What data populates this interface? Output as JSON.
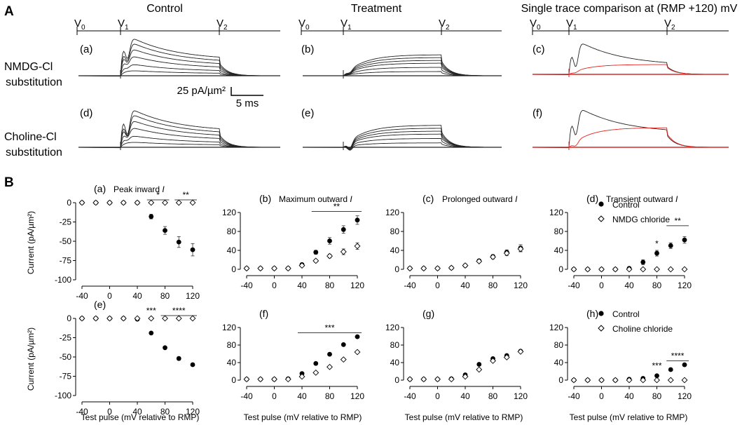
{
  "section_a": {
    "label": "A",
    "col_titles": [
      "Control",
      "Treatment",
      "Single trace comparison at (RMP +120) mV"
    ],
    "voltage_marks": [
      "V0",
      "V1",
      "V2"
    ],
    "row_labels": [
      [
        "NMDG-Cl",
        "substitution"
      ],
      [
        "Choline-Cl",
        "substitution"
      ]
    ],
    "panel_letters": [
      "(a)",
      "(b)",
      "(c)",
      "(d)",
      "(e)",
      "(f)"
    ],
    "scale_bar": {
      "y_label": "25 pA/µm²",
      "x_label": "5 ms"
    },
    "trace_colors": {
      "control": "#222222",
      "treatment": "#e8231e"
    }
  },
  "section_b": {
    "label": "B",
    "y_axis_label": "Current (pA/µm²)",
    "x_axis_label": "Test pulse (mV relative to RMP)",
    "legend_top": [
      "Control",
      "NMDG chloride"
    ],
    "legend_bottom": [
      "Control",
      "Choline chloride"
    ]
  },
  "chart_data": [
    {
      "id": "a",
      "type": "scatter",
      "title": "Peak inward I",
      "letter": "(a)",
      "x": [
        -40,
        -20,
        0,
        20,
        40,
        60,
        80,
        100,
        120
      ],
      "series": [
        {
          "name": "Control",
          "values": [
            0,
            0,
            0,
            0,
            0,
            -18,
            -36,
            -51,
            -61
          ],
          "err": [
            0,
            0,
            0,
            0,
            0,
            3,
            5,
            7,
            8
          ]
        },
        {
          "name": "NMDG chloride",
          "values": [
            0,
            0,
            0,
            0,
            0,
            0,
            0,
            0,
            0
          ],
          "err": [
            0,
            0,
            0,
            0,
            0,
            0,
            0,
            0,
            0
          ]
        }
      ],
      "ylim": [
        -100,
        0
      ],
      "yticks": [
        0,
        -25,
        -50,
        -75,
        -100
      ],
      "xticks": [
        -40,
        0,
        40,
        80,
        120
      ],
      "sig": [
        {
          "x1": 60,
          "x2": 80,
          "label": "*"
        },
        {
          "x1": 100,
          "x2": 120,
          "label": "**"
        }
      ]
    },
    {
      "id": "b",
      "type": "scatter",
      "title": "Maximum outward I",
      "letter": "(b)",
      "x": [
        -40,
        -20,
        0,
        20,
        40,
        60,
        80,
        100,
        120
      ],
      "series": [
        {
          "name": "Control",
          "values": [
            2,
            2,
            2,
            2,
            10,
            36,
            60,
            84,
            104
          ],
          "err": [
            1,
            1,
            1,
            1,
            2,
            4,
            7,
            8,
            9
          ]
        },
        {
          "name": "NMDG chloride",
          "values": [
            2,
            2,
            2,
            2,
            8,
            18,
            28,
            37,
            49
          ],
          "err": [
            1,
            1,
            1,
            1,
            2,
            3,
            4,
            6,
            7
          ]
        }
      ],
      "ylim": [
        0,
        120
      ],
      "yticks": [
        0,
        40,
        80,
        120
      ],
      "xticks": [
        -40,
        0,
        40,
        80,
        120
      ],
      "sig": [
        {
          "x1": 60,
          "x2": 120,
          "label": "**"
        }
      ]
    },
    {
      "id": "c",
      "type": "scatter",
      "title": "Prolonged outward I",
      "letter": "(c)",
      "x": [
        -40,
        -20,
        0,
        20,
        40,
        60,
        80,
        100,
        120
      ],
      "series": [
        {
          "name": "Control",
          "values": [
            2,
            2,
            2,
            3,
            8,
            18,
            27,
            36,
            45
          ],
          "err": [
            1,
            1,
            1,
            1,
            2,
            3,
            4,
            5,
            7
          ]
        },
        {
          "name": "NMDG chloride",
          "values": [
            2,
            2,
            2,
            3,
            8,
            17,
            26,
            34,
            43
          ],
          "err": [
            1,
            1,
            1,
            1,
            2,
            3,
            4,
            5,
            6
          ]
        }
      ],
      "ylim": [
        0,
        120
      ],
      "yticks": [
        0,
        40,
        80,
        120
      ],
      "xticks": [
        -40,
        0,
        40,
        80,
        120
      ],
      "sig": []
    },
    {
      "id": "d",
      "type": "scatter",
      "title": "Transient outward I",
      "letter": "(d)",
      "x": [
        -40,
        -20,
        0,
        20,
        40,
        60,
        80,
        100,
        120
      ],
      "series": [
        {
          "name": "Control",
          "values": [
            0,
            0,
            0,
            0,
            2,
            15,
            34,
            50,
            62
          ],
          "err": [
            0,
            0,
            0,
            0,
            1,
            5,
            6,
            6,
            7
          ]
        },
        {
          "name": "NMDG chloride",
          "values": [
            0,
            0,
            0,
            0,
            0,
            0,
            0,
            0,
            0
          ],
          "err": [
            0,
            0,
            0,
            0,
            0,
            0,
            0,
            0,
            0
          ]
        }
      ],
      "ylim": [
        0,
        120
      ],
      "yticks": [
        0,
        40,
        80,
        120
      ],
      "xticks": [
        -40,
        0,
        40,
        80,
        120
      ],
      "sig": [
        {
          "x1": 80,
          "x2": 80,
          "label": "*"
        },
        {
          "x1": 100,
          "x2": 120,
          "label": "**"
        }
      ]
    },
    {
      "id": "e",
      "type": "scatter",
      "title": "",
      "letter": "(e)",
      "x": [
        -40,
        -20,
        0,
        20,
        40,
        60,
        80,
        100,
        120
      ],
      "series": [
        {
          "name": "Control",
          "values": [
            0,
            0,
            0,
            0,
            -1,
            -19,
            -38,
            -52,
            -60
          ],
          "err": [
            0,
            0,
            0,
            0,
            0,
            1,
            1,
            2,
            1
          ]
        },
        {
          "name": "Choline chloride",
          "values": [
            0,
            0,
            0,
            0,
            0,
            0,
            0,
            0,
            0
          ],
          "err": [
            0,
            0,
            0,
            0,
            0,
            0,
            0,
            0,
            0
          ]
        }
      ],
      "ylim": [
        -100,
        0
      ],
      "yticks": [
        0,
        -25,
        -50,
        -75,
        -100
      ],
      "xticks": [
        -40,
        0,
        40,
        80,
        120
      ],
      "sig": [
        {
          "x1": 60,
          "x2": 60,
          "label": "***"
        },
        {
          "x1": 80,
          "x2": 120,
          "label": "****"
        }
      ]
    },
    {
      "id": "f",
      "type": "scatter",
      "title": "",
      "letter": "(f)",
      "x": [
        -40,
        -20,
        0,
        20,
        40,
        60,
        80,
        100,
        120
      ],
      "series": [
        {
          "name": "Control",
          "values": [
            2,
            2,
            2,
            3,
            15,
            38,
            59,
            81,
            99
          ],
          "err": [
            0,
            0,
            0,
            0,
            1,
            1,
            1,
            2,
            2
          ]
        },
        {
          "name": "Choline chloride",
          "values": [
            2,
            2,
            2,
            2,
            8,
            17,
            30,
            47,
            64
          ],
          "err": [
            0,
            0,
            0,
            0,
            1,
            1,
            1,
            1,
            2
          ]
        }
      ],
      "ylim": [
        0,
        120
      ],
      "yticks": [
        0,
        40,
        80,
        120
      ],
      "xticks": [
        -40,
        0,
        40,
        80,
        120
      ],
      "sig": [
        {
          "x1": 40,
          "x2": 120,
          "label": "***"
        }
      ]
    },
    {
      "id": "g",
      "type": "scatter",
      "title": "",
      "letter": "(g)",
      "x": [
        -40,
        -20,
        0,
        20,
        40,
        60,
        80,
        100,
        120
      ],
      "series": [
        {
          "name": "Control",
          "values": [
            2,
            2,
            2,
            3,
            12,
            36,
            49,
            56,
            66
          ],
          "err": [
            0,
            0,
            0,
            0,
            1,
            1,
            1,
            1,
            2
          ]
        },
        {
          "name": "Choline chloride",
          "values": [
            2,
            2,
            2,
            2,
            8,
            24,
            44,
            52,
            65
          ],
          "err": [
            0,
            0,
            0,
            0,
            1,
            1,
            1,
            1,
            2
          ]
        }
      ],
      "ylim": [
        0,
        120
      ],
      "yticks": [
        0,
        40,
        80,
        120
      ],
      "xticks": [
        -40,
        0,
        40,
        80,
        120
      ],
      "sig": []
    },
    {
      "id": "h",
      "type": "scatter",
      "title": "",
      "letter": "(h)",
      "x": [
        -40,
        -20,
        0,
        20,
        40,
        60,
        80,
        100,
        120
      ],
      "series": [
        {
          "name": "Control",
          "values": [
            0,
            0,
            0,
            0,
            2,
            4,
            10,
            24,
            35
          ],
          "err": [
            0,
            0,
            0,
            0,
            0,
            0,
            1,
            1,
            1
          ]
        },
        {
          "name": "Choline chloride",
          "values": [
            0,
            0,
            0,
            0,
            0,
            0,
            0,
            0,
            0
          ],
          "err": [
            0,
            0,
            0,
            0,
            0,
            0,
            0,
            0,
            0
          ]
        }
      ],
      "ylim": [
        0,
        120
      ],
      "yticks": [
        0,
        40,
        80,
        120
      ],
      "xticks": [
        -40,
        0,
        40,
        80,
        120
      ],
      "sig": [
        {
          "x1": 80,
          "x2": 80,
          "label": "***"
        },
        {
          "x1": 100,
          "x2": 120,
          "label": "****"
        }
      ]
    }
  ]
}
